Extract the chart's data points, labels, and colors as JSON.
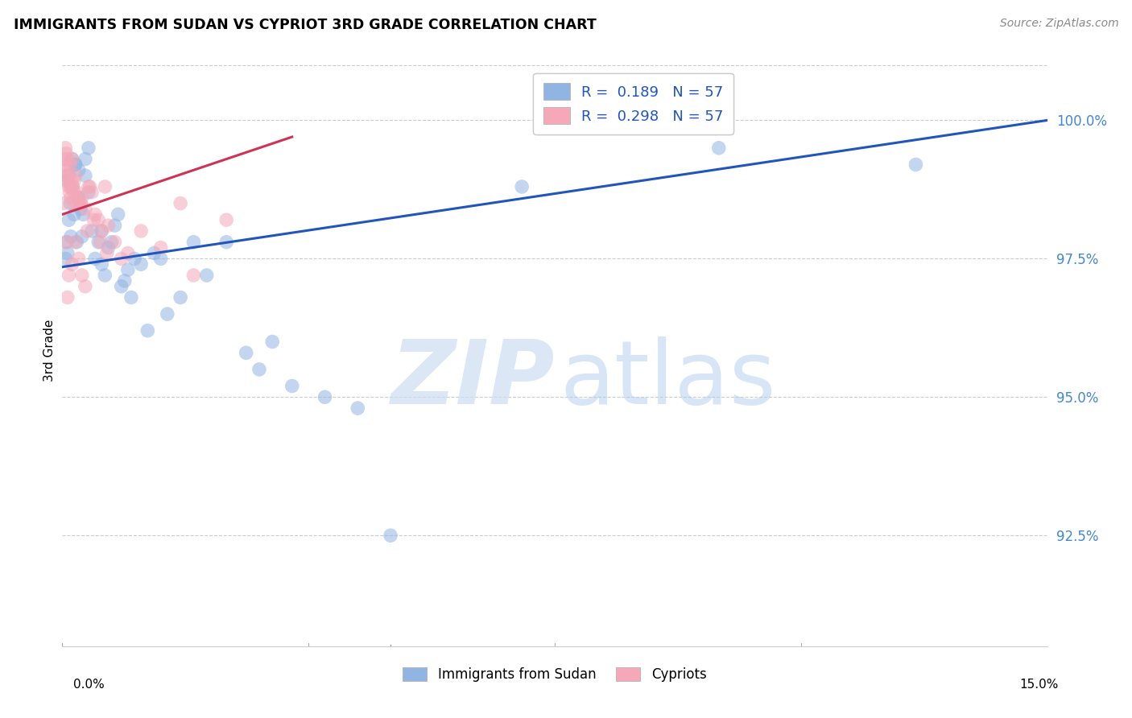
{
  "title": "IMMIGRANTS FROM SUDAN VS CYPRIOT 3RD GRADE CORRELATION CHART",
  "source": "Source: ZipAtlas.com",
  "ylabel": "3rd Grade",
  "xlim": [
    0.0,
    15.0
  ],
  "ylim": [
    90.5,
    101.2
  ],
  "ytick_values": [
    92.5,
    95.0,
    97.5,
    100.0
  ],
  "blue_color": "#92b4e3",
  "pink_color": "#f4a8b8",
  "trendline_blue_color": "#2255bb",
  "trendline_pink_color": "#cc3355",
  "legend_label_blue": "Immigrants from Sudan",
  "legend_label_pink": "Cypriots",
  "blue_trendline_x0": 0.0,
  "blue_trendline_y0": 97.35,
  "blue_trendline_x1": 15.0,
  "blue_trendline_y1": 100.0,
  "pink_trendline_x0": 0.0,
  "pink_trendline_y0": 98.3,
  "pink_trendline_x1": 3.5,
  "pink_trendline_y1": 99.7,
  "blue_scatter_x": [
    0.05,
    0.07,
    0.08,
    0.1,
    0.12,
    0.13,
    0.15,
    0.18,
    0.2,
    0.22,
    0.25,
    0.28,
    0.3,
    0.32,
    0.35,
    0.4,
    0.45,
    0.5,
    0.55,
    0.6,
    0.65,
    0.7,
    0.75,
    0.8,
    0.85,
    0.9,
    1.0,
    1.1,
    1.2,
    1.4,
    1.5,
    1.6,
    1.8,
    2.0,
    2.2,
    2.5,
    2.8,
    3.0,
    3.2,
    3.5,
    4.0,
    4.5,
    5.0,
    7.0,
    10.0,
    13.0,
    1.3,
    0.95,
    1.05,
    0.6,
    0.4,
    0.35,
    0.25,
    0.2,
    0.15,
    0.1,
    0.08
  ],
  "blue_scatter_y": [
    97.5,
    97.8,
    97.6,
    98.2,
    98.5,
    97.9,
    98.8,
    98.3,
    99.2,
    97.8,
    98.6,
    98.4,
    97.9,
    98.3,
    99.3,
    98.7,
    98.0,
    97.5,
    97.8,
    97.4,
    97.2,
    97.7,
    97.8,
    98.1,
    98.3,
    97.0,
    97.3,
    97.5,
    97.4,
    97.6,
    97.5,
    96.5,
    96.8,
    97.8,
    97.2,
    97.8,
    95.8,
    95.5,
    96.0,
    95.2,
    95.0,
    94.8,
    92.5,
    98.8,
    99.5,
    99.2,
    96.2,
    97.1,
    96.8,
    98.0,
    99.5,
    99.0,
    99.1,
    99.2,
    99.3,
    99.0,
    98.9
  ],
  "pink_scatter_x": [
    0.02,
    0.03,
    0.05,
    0.06,
    0.07,
    0.08,
    0.09,
    0.1,
    0.11,
    0.12,
    0.13,
    0.14,
    0.15,
    0.16,
    0.17,
    0.18,
    0.2,
    0.22,
    0.25,
    0.28,
    0.3,
    0.35,
    0.4,
    0.45,
    0.5,
    0.55,
    0.6,
    0.65,
    0.7,
    0.8,
    0.9,
    1.0,
    1.2,
    1.5,
    1.8,
    2.0,
    2.5,
    0.25,
    0.3,
    0.35,
    0.2,
    0.15,
    0.1,
    0.08,
    0.06,
    0.04,
    0.05,
    0.07,
    0.12,
    0.18,
    0.22,
    0.28,
    0.38,
    0.42,
    0.48,
    0.58,
    0.68
  ],
  "pink_scatter_y": [
    98.5,
    99.3,
    99.5,
    99.4,
    99.1,
    98.9,
    99.0,
    98.8,
    98.7,
    99.2,
    98.6,
    98.9,
    99.3,
    98.8,
    98.5,
    98.7,
    99.0,
    98.5,
    98.6,
    98.5,
    98.6,
    98.4,
    98.8,
    98.7,
    98.3,
    98.2,
    98.0,
    98.8,
    98.1,
    97.8,
    97.5,
    97.6,
    98.0,
    97.7,
    98.5,
    97.2,
    98.2,
    97.5,
    97.2,
    97.0,
    97.8,
    97.4,
    97.2,
    96.8,
    97.8,
    99.2,
    99.0,
    99.3,
    98.8,
    98.9,
    98.7,
    98.5,
    98.0,
    98.8,
    98.2,
    97.8,
    97.6
  ],
  "watermark_zip_color": "#ccddf0",
  "watermark_atlas_color": "#b0ccee"
}
